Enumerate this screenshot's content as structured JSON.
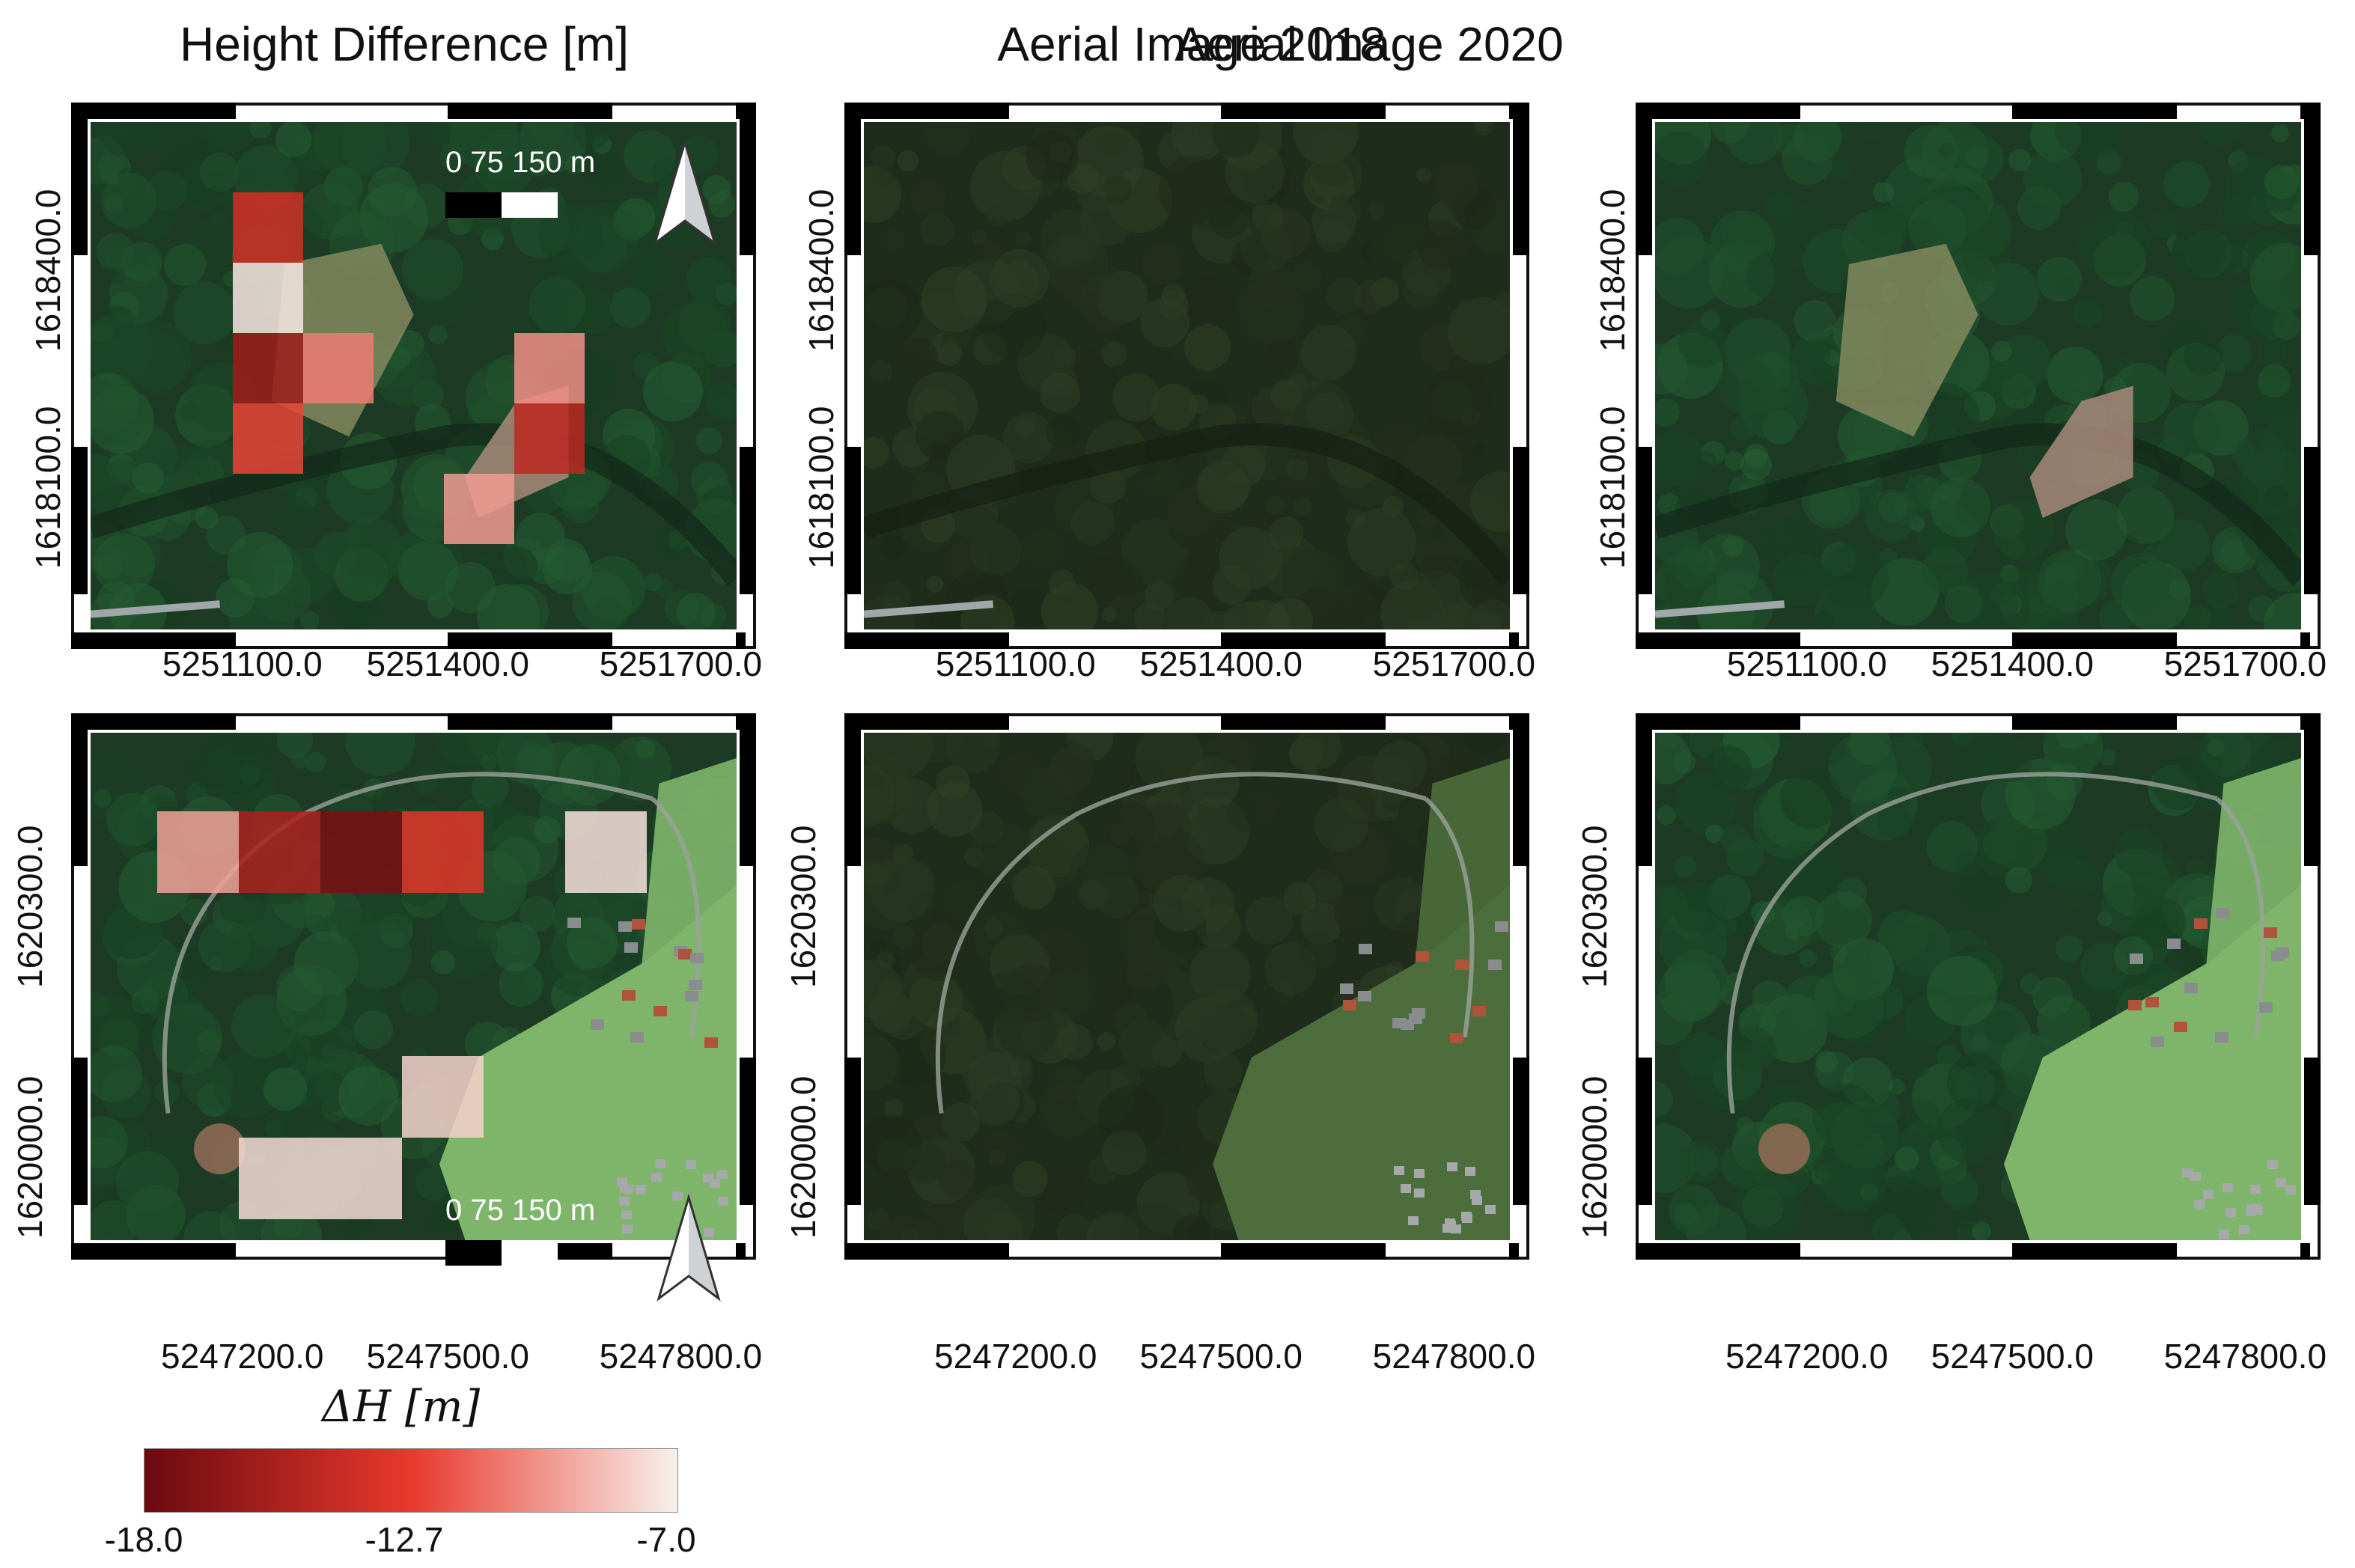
{
  "columns": {
    "height_difference": "Height Difference [m]",
    "aerial_2018": "Aerial Image 2018",
    "aerial_2020": "Aerial Image 2020"
  },
  "row1": {
    "y_ticks": [
      "1618400.0",
      "1618100.0"
    ],
    "x_ticks": [
      "5251100.0",
      "5251400.0",
      "5251700.0"
    ]
  },
  "row2": {
    "y_ticks": [
      "1620300.0",
      "1620000.0"
    ],
    "x_ticks": [
      "5247200.0",
      "5247500.0",
      "5247800.0"
    ]
  },
  "scale_bar": {
    "text": "0   75 150 m"
  },
  "colorbar": {
    "title": "ΔH [m]",
    "ticks": [
      "-18.0",
      "-12.7",
      "-7.0"
    ],
    "min": -18.0,
    "max": -7.0,
    "colors": [
      "#6b0a10",
      "#e8392c",
      "#f7f1ec"
    ]
  },
  "cells_row1": [
    {
      "col": 0,
      "row": 0,
      "value": -13.6
    },
    {
      "col": 0,
      "row": 1,
      "value": -7.3
    },
    {
      "col": 0,
      "row": 2,
      "value": -15.8
    },
    {
      "col": 1,
      "row": 2,
      "value": -10.5
    },
    {
      "col": 0,
      "row": 3,
      "value": -12.2
    },
    {
      "col": 4,
      "row": 2,
      "value": -10.0
    },
    {
      "col": 4,
      "row": 3,
      "value": -14.5
    },
    {
      "col": 3,
      "row": 4,
      "value": -9.6
    }
  ],
  "cells_row2": [
    {
      "col": 0,
      "row": 0,
      "value": -9.4
    },
    {
      "col": 1,
      "row": 0,
      "value": -15.2
    },
    {
      "col": 2,
      "row": 0,
      "value": -17.4
    },
    {
      "col": 3,
      "row": 0,
      "value": -12.8
    },
    {
      "col": 5,
      "row": 0,
      "value": -7.5
    },
    {
      "col": 3,
      "row": 3,
      "value": -8.0
    },
    {
      "col": 1,
      "row": 4,
      "value": -7.7
    },
    {
      "col": 2,
      "row": 4,
      "value": -7.7
    }
  ]
}
